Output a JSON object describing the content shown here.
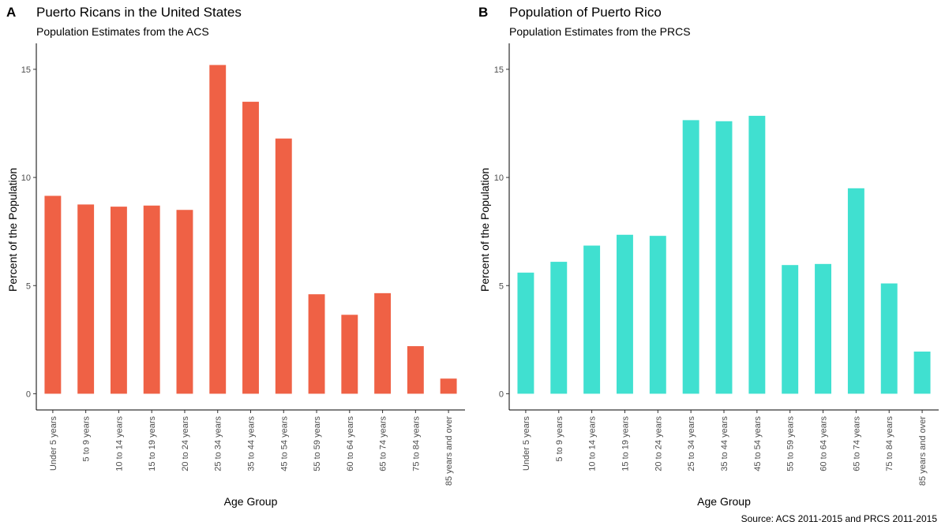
{
  "caption": "Source: ACS 2011-2015 and PRCS 2011-2015",
  "panels": [
    {
      "letter": "A",
      "title": "Puerto Ricans in the United States",
      "subtitle": "Population Estimates from the ACS",
      "color": "#EF6145"
    },
    {
      "letter": "B",
      "title": "Population of Puerto Rico",
      "subtitle": "Population Estimates from the PRCS",
      "color": "#40E0D0"
    }
  ],
  "chart_data": [
    {
      "type": "bar",
      "title": "Puerto Ricans in the United States",
      "subtitle": "Population Estimates from the ACS",
      "xlabel": "Age Group",
      "ylabel": "Percent of the Population",
      "categories": [
        "Under 5 years",
        "5 to 9 years",
        "10 to 14 years",
        "15 to 19 years",
        "20 to 24 years",
        "25 to 34 years",
        "35 to 44 years",
        "45 to 54 years",
        "55 to 59 years",
        "60 to 64 years",
        "65 to 74 years",
        "75 to 84 years",
        "85 years and over"
      ],
      "values": [
        9.15,
        8.75,
        8.65,
        8.7,
        8.5,
        15.2,
        13.5,
        11.8,
        4.6,
        3.65,
        4.65,
        2.2,
        0.7
      ],
      "yticks": [
        0,
        5,
        10,
        15
      ],
      "ylim": [
        -0.75,
        16.2
      ],
      "grid": false,
      "color": "#EF6145"
    },
    {
      "type": "bar",
      "title": "Population of Puerto Rico",
      "subtitle": "Population Estimates from the PRCS",
      "xlabel": "Age Group",
      "ylabel": "Percent of the Population",
      "categories": [
        "Under 5 years",
        "5 to 9 years",
        "10 to 14 years",
        "15 to 19 years",
        "20 to 24 years",
        "25 to 34 years",
        "35 to 44 years",
        "45 to 54 years",
        "55 to 59 years",
        "60 to 64 years",
        "65 to 74 years",
        "75 to 84 years",
        "85 years and over"
      ],
      "values": [
        5.6,
        6.1,
        6.85,
        7.35,
        7.3,
        12.65,
        12.6,
        12.85,
        5.95,
        6.0,
        9.5,
        5.1,
        1.95
      ],
      "yticks": [
        0,
        5,
        10,
        15
      ],
      "ylim": [
        -0.75,
        16.2
      ],
      "grid": false,
      "color": "#40E0D0"
    }
  ]
}
